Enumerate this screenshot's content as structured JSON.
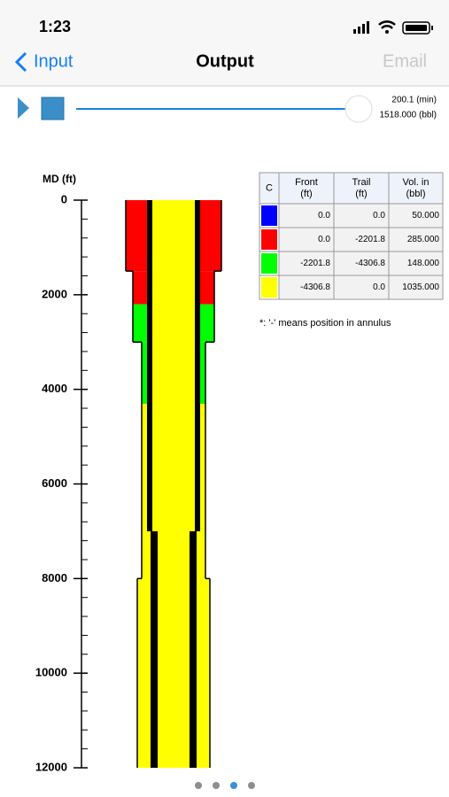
{
  "status_bar": {
    "time": "1:23"
  },
  "nav": {
    "back": "Input",
    "title": "Output",
    "action": "Email"
  },
  "player": {
    "time": "200.1 (min)",
    "volume": "1518.000 (bbl)"
  },
  "depth_axis": {
    "label": "MD (ft)",
    "range": [
      0,
      12000
    ],
    "ticks": [
      0,
      2000,
      4000,
      6000,
      8000,
      10000,
      12000
    ],
    "minor_step": 400
  },
  "wellbore": {
    "casing_steps": [
      1500,
      3000,
      8000
    ],
    "collar_top": 7000
  },
  "table": {
    "header": [
      [
        "C"
      ],
      [
        "Front",
        "(ft)"
      ],
      [
        "Trail",
        "(ft)"
      ],
      [
        "Vol. in",
        "(bbl)"
      ]
    ],
    "rows": [
      {
        "color": "#0000ff",
        "front": "0.0",
        "trail": "0.0",
        "volume": "50.000"
      },
      {
        "color": "#ff0000",
        "front": "0.0",
        "trail": "-2201.8",
        "volume": "285.000"
      },
      {
        "color": "#00ff00",
        "front": "-2201.8",
        "trail": "-4306.8",
        "volume": "148.000"
      },
      {
        "color": "#ffff00",
        "front": "-4306.8",
        "trail": "0.0",
        "volume": "1035.000"
      }
    ]
  },
  "note": "*:  '-' means position in annulus",
  "pager": {
    "count": 4,
    "current": 2
  }
}
